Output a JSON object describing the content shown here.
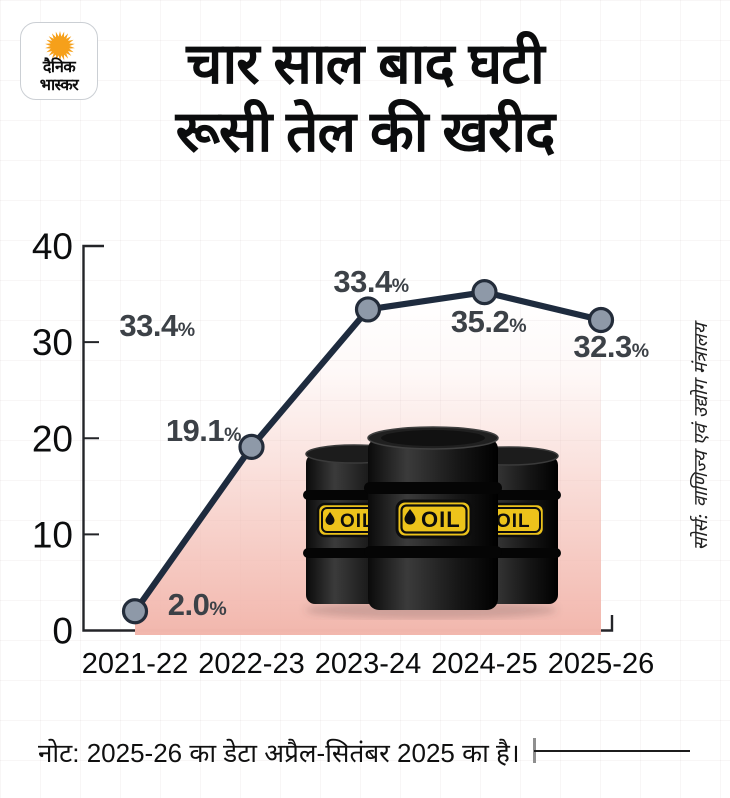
{
  "brand": {
    "name": "Dainik Bhaskar",
    "logo_line1": "दैनिक",
    "logo_line2": "भास्कर",
    "sun_color": "#f6a01a"
  },
  "title": {
    "line1": "चार साल बाद घटी",
    "line2": "रूसी तेल की खरीद"
  },
  "source_note": "सोर्स: वाणिज्य एवं उद्योग मंत्रालय",
  "footnote": "नोट: 2025-26 का डेटा अप्रैल-सितंबर 2025 का है।",
  "barrels": {
    "label": "OIL",
    "count": 3,
    "plate_color": "#edc31b"
  },
  "chart_data": {
    "type": "line",
    "categories": [
      "2021-22",
      "2022-23",
      "2023-24",
      "2024-25",
      "2025-26"
    ],
    "values": [
      2.0,
      19.1,
      33.4,
      35.2,
      32.3
    ],
    "value_labels": [
      "2.0%",
      "19.1%",
      "33.4%",
      "35.2%",
      "32.3%"
    ],
    "extra_annotation": "33.4%",
    "y_ticks": [
      0,
      10,
      20,
      30,
      40
    ],
    "ylim": [
      0,
      40
    ],
    "xlabel": "",
    "ylabel": "",
    "grid": "faint",
    "legend": "none",
    "area_fill": true,
    "colors": {
      "line": "#1e2b3e",
      "marker_fill": "#8e99a8",
      "marker_stroke": "#232c3a",
      "area_bottom": "#f2b7ad",
      "value_label": "#3c4147",
      "axis": "#232428"
    }
  }
}
